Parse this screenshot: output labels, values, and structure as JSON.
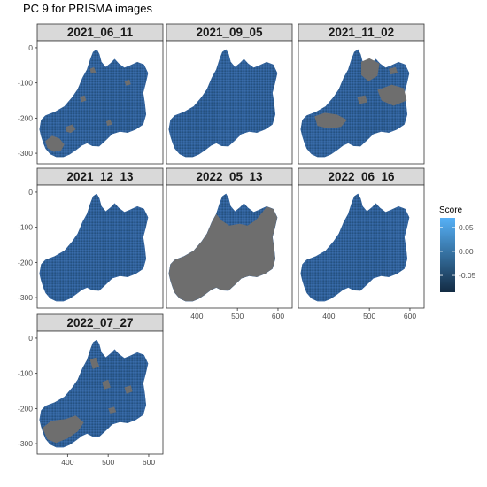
{
  "chart_data": {
    "type": "heatmap",
    "title": "PC 9 for PRISMA images",
    "xlabel": "",
    "ylabel": "",
    "facets": [
      {
        "label": "2021_06_11",
        "gray_regions": "lower-left patches, small spots"
      },
      {
        "label": "2021_09_05",
        "gray_regions": "none"
      },
      {
        "label": "2021_11_02",
        "gray_regions": "top and middle band"
      },
      {
        "label": "2021_12_13",
        "gray_regions": "none"
      },
      {
        "label": "2022_05_13",
        "gray_regions": "almost all except top"
      },
      {
        "label": "2022_06_16",
        "gray_regions": "none"
      },
      {
        "label": "2022_07_27",
        "gray_regions": "lower-left and middle patches"
      }
    ],
    "x_ticks": [
      400,
      500,
      600
    ],
    "x_tick_labels": [
      "400",
      "500",
      "600"
    ],
    "y_ticks": [
      0,
      -100,
      -200,
      -300
    ],
    "y_tick_labels": [
      "0",
      "-100",
      "-200",
      "-300"
    ],
    "xlim": [
      325,
      635
    ],
    "ylim": [
      -330,
      20
    ],
    "legend": {
      "title": "Score",
      "placement": "right",
      "breaks": [
        0.05,
        0.0,
        -0.05
      ],
      "break_labels": [
        "0.05",
        "0.00",
        "-0.05"
      ],
      "range": [
        -0.085,
        0.07
      ],
      "colors": {
        "low": "#132B43",
        "high": "#56B1F7"
      }
    },
    "fill_colors": {
      "score_fill": "#2e5f9a",
      "na_fill": "#6e6e6e"
    },
    "grid": false
  }
}
